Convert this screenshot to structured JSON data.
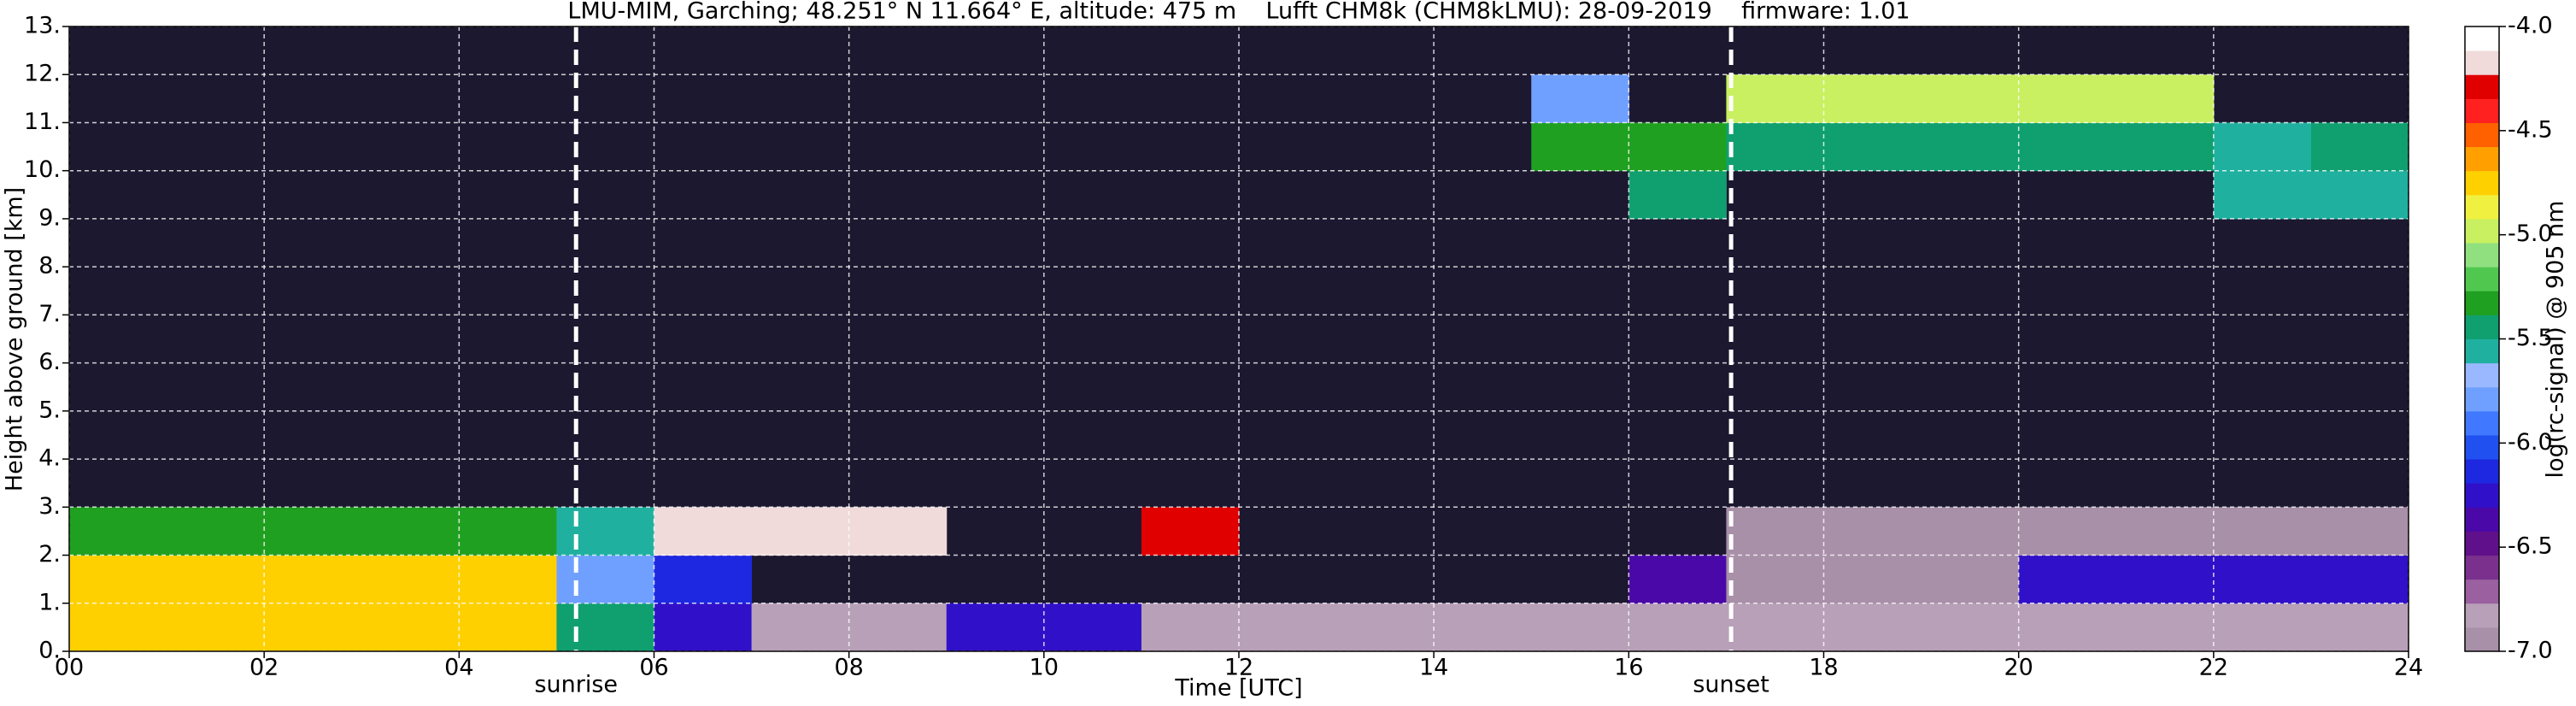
{
  "chart_data": {
    "type": "heatmap",
    "title": "LMU-MIM, Garching; 48.251° N 11.664° E, altitude: 475 m    Lufft CHM8k (CHM8kLMU): 28-09-2019    firmware: 1.01",
    "x_label": "Time [UTC]",
    "y_label": "Height above ground [km]",
    "colorbar_label": "log(rc-signal) @ 905 nm",
    "xlim": [
      0,
      24
    ],
    "ylim": [
      0,
      13
    ],
    "xticks": [
      {
        "value": 0,
        "label": "00"
      },
      {
        "value": 2,
        "label": "02"
      },
      {
        "value": 4,
        "label": "04"
      },
      {
        "value": 6,
        "label": "06"
      },
      {
        "value": 8,
        "label": "08"
      },
      {
        "value": 10,
        "label": "10"
      },
      {
        "value": 12,
        "label": "12"
      },
      {
        "value": 14,
        "label": "14"
      },
      {
        "value": 16,
        "label": "16"
      },
      {
        "value": 18,
        "label": "18"
      },
      {
        "value": 20,
        "label": "20"
      },
      {
        "value": 22,
        "label": "22"
      },
      {
        "value": 24,
        "label": "24"
      }
    ],
    "yticks": [
      {
        "value": 0,
        "label": "0."
      },
      {
        "value": 1,
        "label": "1."
      },
      {
        "value": 2,
        "label": "2."
      },
      {
        "value": 3,
        "label": "3."
      },
      {
        "value": 4,
        "label": "4."
      },
      {
        "value": 5,
        "label": "5."
      },
      {
        "value": 6,
        "label": "6."
      },
      {
        "value": 7,
        "label": "7."
      },
      {
        "value": 8,
        "label": "8."
      },
      {
        "value": 9,
        "label": "9."
      },
      {
        "value": 10,
        "label": "10."
      },
      {
        "value": 11,
        "label": "11."
      },
      {
        "value": 12,
        "label": "12."
      },
      {
        "value": 13,
        "label": "13."
      }
    ],
    "grid": true,
    "background": "#1c1830",
    "xbins": [
      0,
      1,
      2,
      3,
      4,
      5,
      6,
      7,
      8,
      9,
      10,
      11,
      12,
      13,
      14,
      15,
      16,
      17,
      18,
      19,
      20,
      21,
      22,
      23,
      24
    ],
    "ybins": [
      0,
      1,
      2,
      3,
      4,
      5,
      6,
      7,
      8,
      9,
      10,
      11,
      12,
      13
    ],
    "z": [
      [
        -4.7,
        -4.7,
        -4.7,
        -4.7,
        -4.7,
        -5.5,
        -6.2,
        -6.8,
        -6.8,
        -6.3,
        -6.3,
        -6.8,
        -6.8,
        -6.8,
        -6.8,
        -6.8,
        -6.8,
        -6.8,
        -6.8,
        -6.8,
        -6.8,
        -6.8,
        -6.8,
        -6.8
      ],
      [
        -4.8,
        -4.8,
        -4.8,
        -4.8,
        -4.8,
        -5.8,
        -6.1,
        null,
        null,
        null,
        null,
        null,
        null,
        null,
        null,
        null,
        -6.4,
        -6.9,
        -6.9,
        -6.9,
        -6.3,
        -6.3,
        -6.3,
        -6.3
      ],
      [
        -5.3,
        -5.3,
        -5.3,
        -5.3,
        -5.3,
        -5.6,
        -4.2,
        -4.2,
        -4.2,
        null,
        null,
        -4.3,
        null,
        null,
        null,
        null,
        null,
        -6.9,
        -6.9,
        -6.9,
        -6.9,
        -6.9,
        -6.9,
        -6.9
      ],
      [
        null,
        null,
        null,
        null,
        null,
        null,
        null,
        null,
        null,
        null,
        null,
        null,
        null,
        null,
        null,
        null,
        null,
        null,
        null,
        null,
        null,
        null,
        null,
        null
      ],
      [
        null,
        null,
        null,
        null,
        null,
        null,
        null,
        null,
        null,
        null,
        null,
        null,
        null,
        null,
        null,
        null,
        null,
        null,
        null,
        null,
        null,
        null,
        null,
        null
      ],
      [
        null,
        null,
        null,
        null,
        null,
        null,
        null,
        null,
        null,
        null,
        null,
        null,
        null,
        null,
        null,
        null,
        null,
        null,
        null,
        null,
        null,
        null,
        null,
        null
      ],
      [
        null,
        null,
        null,
        null,
        null,
        null,
        null,
        null,
        null,
        null,
        null,
        null,
        null,
        null,
        null,
        null,
        null,
        null,
        null,
        null,
        null,
        null,
        null,
        null
      ],
      [
        null,
        null,
        null,
        null,
        null,
        null,
        null,
        null,
        null,
        null,
        null,
        null,
        null,
        null,
        null,
        null,
        null,
        null,
        null,
        null,
        null,
        null,
        null,
        null
      ],
      [
        null,
        null,
        null,
        null,
        null,
        null,
        null,
        null,
        null,
        null,
        null,
        null,
        null,
        null,
        null,
        null,
        null,
        null,
        null,
        null,
        null,
        null,
        null,
        null
      ],
      [
        null,
        null,
        null,
        null,
        null,
        null,
        null,
        null,
        null,
        null,
        null,
        null,
        null,
        null,
        null,
        null,
        -5.4,
        null,
        null,
        null,
        null,
        null,
        -5.6,
        -5.6
      ],
      [
        null,
        null,
        null,
        null,
        null,
        null,
        null,
        null,
        null,
        null,
        null,
        null,
        null,
        null,
        null,
        -5.3,
        -5.3,
        -5.5,
        -5.5,
        -5.5,
        -5.5,
        -5.5,
        -5.6,
        -5.5
      ],
      [
        null,
        null,
        null,
        null,
        null,
        null,
        null,
        null,
        null,
        null,
        null,
        null,
        null,
        null,
        null,
        -5.8,
        null,
        -5.0,
        -5.0,
        -5.0,
        -5.0,
        -5.0,
        null,
        null
      ],
      [
        null,
        null,
        null,
        null,
        null,
        null,
        null,
        null,
        null,
        null,
        null,
        null,
        null,
        null,
        null,
        null,
        null,
        null,
        null,
        null,
        null,
        null,
        null,
        null
      ]
    ],
    "clim": [
      -7,
      -4
    ],
    "colormap": [
      "#a890a8",
      "#b8a0b8",
      "#9a60a0",
      "#7a308c",
      "#60108a",
      "#4a08a8",
      "#3010c8",
      "#1e28e0",
      "#2050f0",
      "#4078ff",
      "#70a0ff",
      "#9ab8ff",
      "#20b0a0",
      "#10a070",
      "#20a020",
      "#50c850",
      "#90e080",
      "#c8f060",
      "#f0f040",
      "#ffd000",
      "#ffa000",
      "#ff6000",
      "#ff2020",
      "#e00000",
      "#f0dada",
      "#ffffff"
    ],
    "cticks": [
      {
        "value": -7,
        "label": "-7.0"
      },
      -6.5,
      {
        "value": -6,
        "label": "-6.0"
      },
      -5.5,
      {
        "value": -5,
        "label": "-5.0"
      },
      -4.5,
      {
        "value": -4,
        "label": "-4.0"
      }
    ],
    "annotations": [
      {
        "x": 5.2,
        "label": "sunrise"
      },
      {
        "x": 17.05,
        "label": "sunset"
      }
    ]
  }
}
